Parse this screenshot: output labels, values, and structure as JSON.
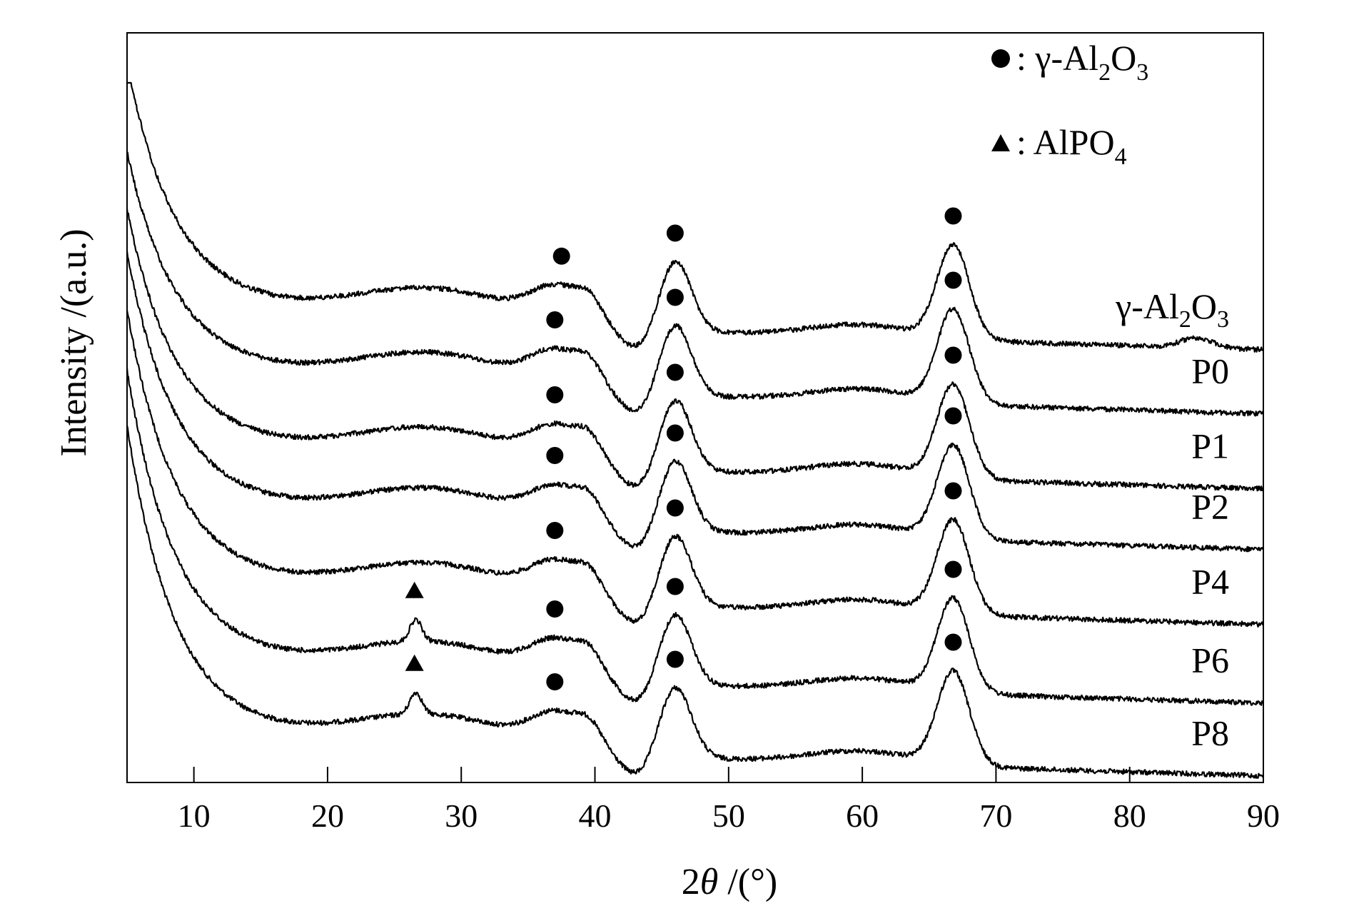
{
  "chart_data": {
    "type": "line",
    "xlabel_prefix": "2",
    "xlabel_symbol": "θ",
    "xlabel_suffix": " /(°)",
    "ylabel": "Intensity /(a.u.)",
    "xlim": [
      5,
      90
    ],
    "xticks": [
      "10",
      "20",
      "30",
      "40",
      "50",
      "60",
      "70",
      "80",
      "90"
    ],
    "grid": false,
    "legend": {
      "placement": "top-right",
      "entries": [
        {
          "marker": "circle",
          "prefix": ": γ-Al",
          "sub1": "2",
          "mid": "O",
          "sub2": "3"
        },
        {
          "marker": "triangle",
          "prefix": ": AlPO",
          "sub1": "4",
          "mid": "",
          "sub2": ""
        }
      ]
    },
    "series": [
      {
        "label_prefix": "P8",
        "label_sub1": "",
        "label_mid": "",
        "label_sub2": "",
        "offset": 6,
        "circles": [
          37,
          46,
          66.8
        ],
        "triangles": [
          26.5
        ]
      },
      {
        "label_prefix": "P6",
        "label_sub1": "",
        "label_mid": "",
        "label_sub2": "",
        "offset": 5,
        "circles": [
          37,
          46,
          66.8
        ],
        "triangles": [
          26.5
        ]
      },
      {
        "label_prefix": "P4",
        "label_sub1": "",
        "label_mid": "",
        "label_sub2": "",
        "offset": 4,
        "circles": [
          37,
          46,
          66.8
        ],
        "triangles": []
      },
      {
        "label_prefix": "P2",
        "label_sub1": "",
        "label_mid": "",
        "label_sub2": "",
        "offset": 3,
        "circles": [
          37,
          46,
          66.8
        ],
        "triangles": []
      },
      {
        "label_prefix": "P1",
        "label_sub1": "",
        "label_mid": "",
        "label_sub2": "",
        "offset": 2,
        "circles": [
          37,
          46,
          66.8
        ],
        "triangles": []
      },
      {
        "label_prefix": "P0",
        "label_sub1": "",
        "label_mid": "",
        "label_sub2": "",
        "offset": 1,
        "circles": [
          37,
          46,
          66.8
        ],
        "triangles": []
      },
      {
        "label_prefix": "γ-Al",
        "label_sub1": "2",
        "label_mid": "O",
        "label_sub2": "3",
        "offset": 0,
        "circles": [
          37.5,
          46,
          66.8
        ],
        "triangles": []
      }
    ]
  }
}
